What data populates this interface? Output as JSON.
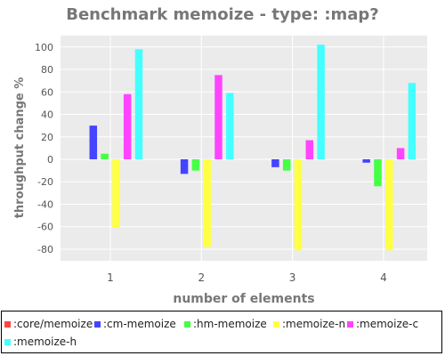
{
  "chart_data": {
    "type": "bar",
    "title": "Benchmark memoize - type: :map?",
    "xlabel": "number of elements",
    "ylabel": "throughput change %",
    "categories": [
      "1",
      "2",
      "3",
      "4"
    ],
    "ylim": [
      -90,
      110
    ],
    "yticks": [
      -80,
      -60,
      -40,
      -20,
      0,
      20,
      40,
      60,
      80,
      100
    ],
    "grid": true,
    "legend_position": "bottom",
    "series": [
      {
        "name": ":core/memoize",
        "color": "#ff4444",
        "values": [
          0,
          0,
          0,
          0
        ]
      },
      {
        "name": ":cm-memoize",
        "color": "#4444ff",
        "values": [
          30,
          -13,
          -7,
          -3
        ]
      },
      {
        "name": ":hm-memoize",
        "color": "#44ff44",
        "values": [
          5,
          -10,
          -10,
          -24
        ]
      },
      {
        "name": ":memoize-n",
        "color": "#ffff44",
        "values": [
          -61,
          -78,
          -81,
          -81
        ]
      },
      {
        "name": ":memoize-c",
        "color": "#ff44ff",
        "values": [
          58,
          75,
          17,
          10
        ]
      },
      {
        "name": ":memoize-h",
        "color": "#44ffff",
        "values": [
          98,
          59,
          102,
          68
        ]
      }
    ]
  }
}
